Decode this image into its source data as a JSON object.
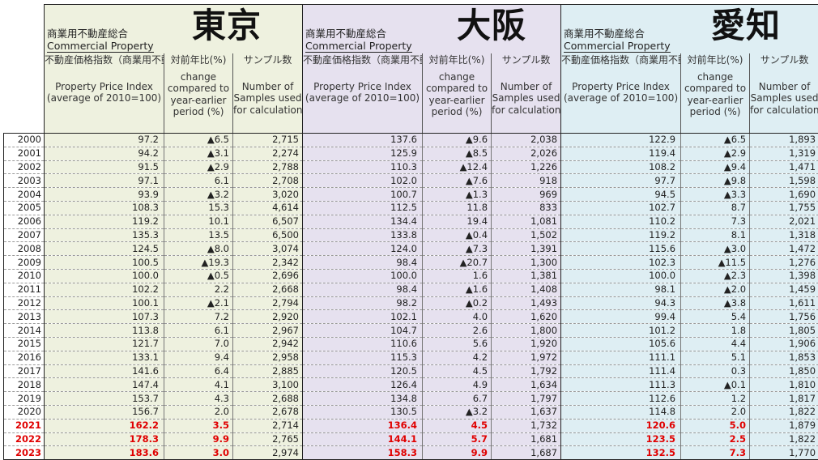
{
  "regions": [
    {
      "key": "tokyo",
      "name": "東京",
      "subtitle_jp": "商業用不動産総合",
      "subtitle_en": "Commercial Property",
      "index_jp": "不動産価格指数（商業用不動産）",
      "index_en1": "Property Price Index",
      "index_en2": "(average of 2010=100)"
    },
    {
      "key": "osaka",
      "name": "大阪",
      "subtitle_jp": "商業用不動産総合",
      "subtitle_en": "Commercial Property",
      "index_jp": "不動産価格指数（商業用不動産）",
      "index_en1": "Property Price Index",
      "index_en2": "(average of 2010=100)"
    },
    {
      "key": "aichi",
      "name": "愛知",
      "subtitle_jp": "商業用不動産総合",
      "subtitle_en": "Commercial Property",
      "index_jp": "不動産価格指数（商業用不動産）",
      "index_en1": "Property Price Index",
      "index_en2": "(average of 2010=100)"
    }
  ],
  "headers": {
    "change_jp": "対前年比(%)",
    "change_en": [
      "change",
      "compared to",
      "year-earlier",
      "period (%)"
    ],
    "samples_jp": "サンプル数",
    "samples_en": [
      "Number of",
      "Samples used",
      "for calculation"
    ]
  },
  "rows": [
    {
      "year": "2000",
      "t": [
        "97.2",
        "▲6.5",
        "2,715"
      ],
      "o": [
        "137.6",
        "▲9.6",
        "2,038"
      ],
      "a": [
        "122.9",
        "▲6.5",
        "1,893"
      ]
    },
    {
      "year": "2001",
      "t": [
        "94.2",
        "▲3.1",
        "2,274"
      ],
      "o": [
        "125.9",
        "▲8.5",
        "2,026"
      ],
      "a": [
        "119.4",
        "▲2.9",
        "1,319"
      ]
    },
    {
      "year": "2002",
      "t": [
        "91.5",
        "▲2.9",
        "2,788"
      ],
      "o": [
        "110.3",
        "▲12.4",
        "1,226"
      ],
      "a": [
        "108.2",
        "▲9.4",
        "1,471"
      ]
    },
    {
      "year": "2003",
      "t": [
        "97.1",
        "6.1",
        "2,708"
      ],
      "o": [
        "102.0",
        "▲7.6",
        "918"
      ],
      "a": [
        "97.7",
        "▲9.8",
        "1,598"
      ]
    },
    {
      "year": "2004",
      "t": [
        "93.9",
        "▲3.2",
        "3,020"
      ],
      "o": [
        "100.7",
        "▲1.3",
        "969"
      ],
      "a": [
        "94.5",
        "▲3.3",
        "1,690"
      ]
    },
    {
      "year": "2005",
      "t": [
        "108.3",
        "15.3",
        "4,614"
      ],
      "o": [
        "112.5",
        "11.8",
        "833"
      ],
      "a": [
        "102.7",
        "8.7",
        "1,755"
      ]
    },
    {
      "year": "2006",
      "t": [
        "119.2",
        "10.1",
        "6,507"
      ],
      "o": [
        "134.4",
        "19.4",
        "1,081"
      ],
      "a": [
        "110.2",
        "7.3",
        "2,021"
      ]
    },
    {
      "year": "2007",
      "t": [
        "135.3",
        "13.5",
        "6,500"
      ],
      "o": [
        "133.8",
        "▲0.4",
        "1,502"
      ],
      "a": [
        "119.2",
        "8.1",
        "1,318"
      ]
    },
    {
      "year": "2008",
      "t": [
        "124.5",
        "▲8.0",
        "3,074"
      ],
      "o": [
        "124.0",
        "▲7.3",
        "1,391"
      ],
      "a": [
        "115.6",
        "▲3.0",
        "1,472"
      ]
    },
    {
      "year": "2009",
      "t": [
        "100.5",
        "▲19.3",
        "2,342"
      ],
      "o": [
        "98.4",
        "▲20.7",
        "1,300"
      ],
      "a": [
        "102.3",
        "▲11.5",
        "1,276"
      ]
    },
    {
      "year": "2010",
      "t": [
        "100.0",
        "▲0.5",
        "2,696"
      ],
      "o": [
        "100.0",
        "1.6",
        "1,381"
      ],
      "a": [
        "100.0",
        "▲2.3",
        "1,398"
      ]
    },
    {
      "year": "2011",
      "t": [
        "102.2",
        "2.2",
        "2,668"
      ],
      "o": [
        "98.4",
        "▲1.6",
        "1,408"
      ],
      "a": [
        "98.1",
        "▲2.0",
        "1,459"
      ]
    },
    {
      "year": "2012",
      "t": [
        "100.1",
        "▲2.1",
        "2,794"
      ],
      "o": [
        "98.2",
        "▲0.2",
        "1,493"
      ],
      "a": [
        "94.3",
        "▲3.8",
        "1,611"
      ]
    },
    {
      "year": "2013",
      "t": [
        "107.3",
        "7.2",
        "2,920"
      ],
      "o": [
        "102.1",
        "4.0",
        "1,620"
      ],
      "a": [
        "99.4",
        "5.4",
        "1,756"
      ]
    },
    {
      "year": "2014",
      "t": [
        "113.8",
        "6.1",
        "2,967"
      ],
      "o": [
        "104.7",
        "2.6",
        "1,800"
      ],
      "a": [
        "101.2",
        "1.8",
        "1,805"
      ]
    },
    {
      "year": "2015",
      "t": [
        "121.7",
        "7.0",
        "2,942"
      ],
      "o": [
        "110.6",
        "5.6",
        "1,920"
      ],
      "a": [
        "105.6",
        "4.4",
        "1,906"
      ]
    },
    {
      "year": "2016",
      "t": [
        "133.1",
        "9.4",
        "2,958"
      ],
      "o": [
        "115.3",
        "4.2",
        "1,972"
      ],
      "a": [
        "111.1",
        "5.1",
        "1,853"
      ]
    },
    {
      "year": "2017",
      "t": [
        "141.6",
        "6.4",
        "2,885"
      ],
      "o": [
        "120.5",
        "4.5",
        "1,792"
      ],
      "a": [
        "111.4",
        "0.3",
        "1,850"
      ]
    },
    {
      "year": "2018",
      "t": [
        "147.4",
        "4.1",
        "3,100"
      ],
      "o": [
        "126.4",
        "4.9",
        "1,634"
      ],
      "a": [
        "111.3",
        "▲0.1",
        "1,810"
      ]
    },
    {
      "year": "2019",
      "t": [
        "153.7",
        "4.3",
        "2,688"
      ],
      "o": [
        "134.8",
        "6.7",
        "1,797"
      ],
      "a": [
        "112.6",
        "1.2",
        "1,817"
      ]
    },
    {
      "year": "2020",
      "t": [
        "156.7",
        "2.0",
        "2,678"
      ],
      "o": [
        "130.5",
        "▲3.2",
        "1,637"
      ],
      "a": [
        "114.8",
        "2.0",
        "1,822"
      ]
    },
    {
      "year": "2021",
      "t": [
        "162.2",
        "3.5",
        "2,714"
      ],
      "o": [
        "136.4",
        "4.5",
        "1,732"
      ],
      "a": [
        "120.6",
        "5.0",
        "1,879"
      ],
      "red": true
    },
    {
      "year": "2022",
      "t": [
        "178.3",
        "9.9",
        "2,765"
      ],
      "o": [
        "144.1",
        "5.7",
        "1,681"
      ],
      "a": [
        "123.5",
        "2.5",
        "1,822"
      ],
      "red": true
    },
    {
      "year": "2023",
      "t": [
        "183.6",
        "3.0",
        "2,974"
      ],
      "o": [
        "158.3",
        "9.9",
        "1,687"
      ],
      "a": [
        "132.5",
        "7.3",
        "1,770"
      ],
      "red": true
    }
  ],
  "colors": {
    "tokyo": "#eef1df",
    "osaka": "#e6e1ef",
    "aichi": "#deeef3",
    "highlight": "#e00000"
  }
}
